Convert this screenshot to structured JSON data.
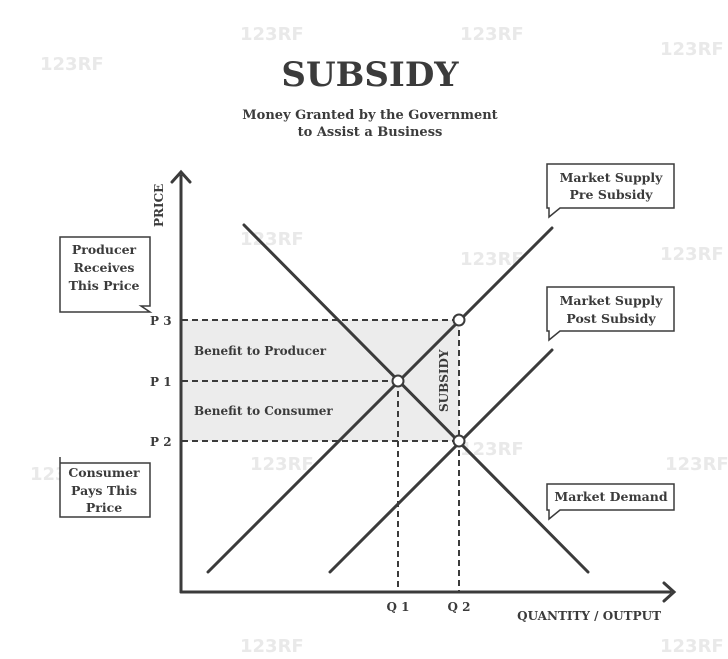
{
  "title": "SUBSIDY",
  "subtitle_line1": "Money Granted by the Government",
  "subtitle_line2": "to Assist a Business",
  "axes": {
    "y_label": "PRICE",
    "x_label": "QUANTITY / OUTPUT",
    "y_ticks": [
      "P 3",
      "P 1",
      "P 2"
    ],
    "x_ticks": [
      "Q 1",
      "Q 2"
    ]
  },
  "regions": {
    "producer_benefit": "Benefit to Producer",
    "consumer_benefit": "Benefit to Consumer",
    "subsidy": "SUBSIDY"
  },
  "callouts": {
    "supply_pre": [
      "Market Supply",
      "Pre Subsidy"
    ],
    "supply_post": [
      "Market Supply",
      "Post Subsidy"
    ],
    "demand": [
      "Market Demand"
    ],
    "producer_price": [
      "Producer",
      "Receives",
      "This Price"
    ],
    "consumer_price": [
      "Consumer",
      "Pays This",
      "Price"
    ]
  },
  "watermark": "123RF",
  "colors": {
    "ink": "#3b3b3b",
    "shaded_area": "#ececec",
    "background": "#ffffff",
    "watermark": "#e9e9e9"
  }
}
